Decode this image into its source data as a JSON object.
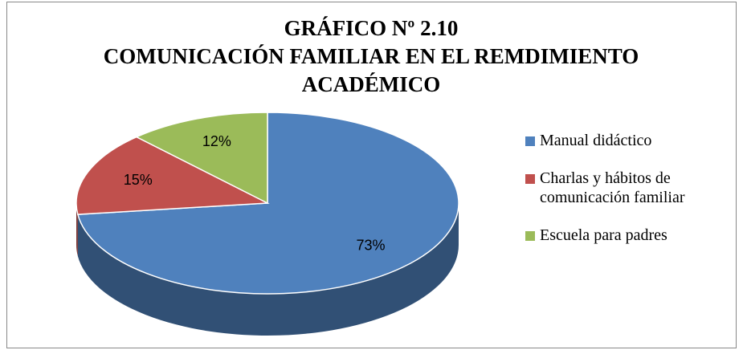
{
  "chart_data": {
    "type": "pie",
    "title": [
      "GRÁFICO Nº 2.10",
      "COMUNICACIÓN FAMILIAR EN EL REMDIMIENTO",
      "ACADÉMICO"
    ],
    "categories": [
      "Manual didáctico",
      "Charlas y hábitos de comunicación familiar",
      "Escuela para padres"
    ],
    "values": [
      73,
      15,
      12
    ],
    "value_labels": [
      "73%",
      "15%",
      "12%"
    ],
    "colors": [
      "#4f81bd",
      "#c0504d",
      "#9bbb59"
    ],
    "legend": "right"
  }
}
